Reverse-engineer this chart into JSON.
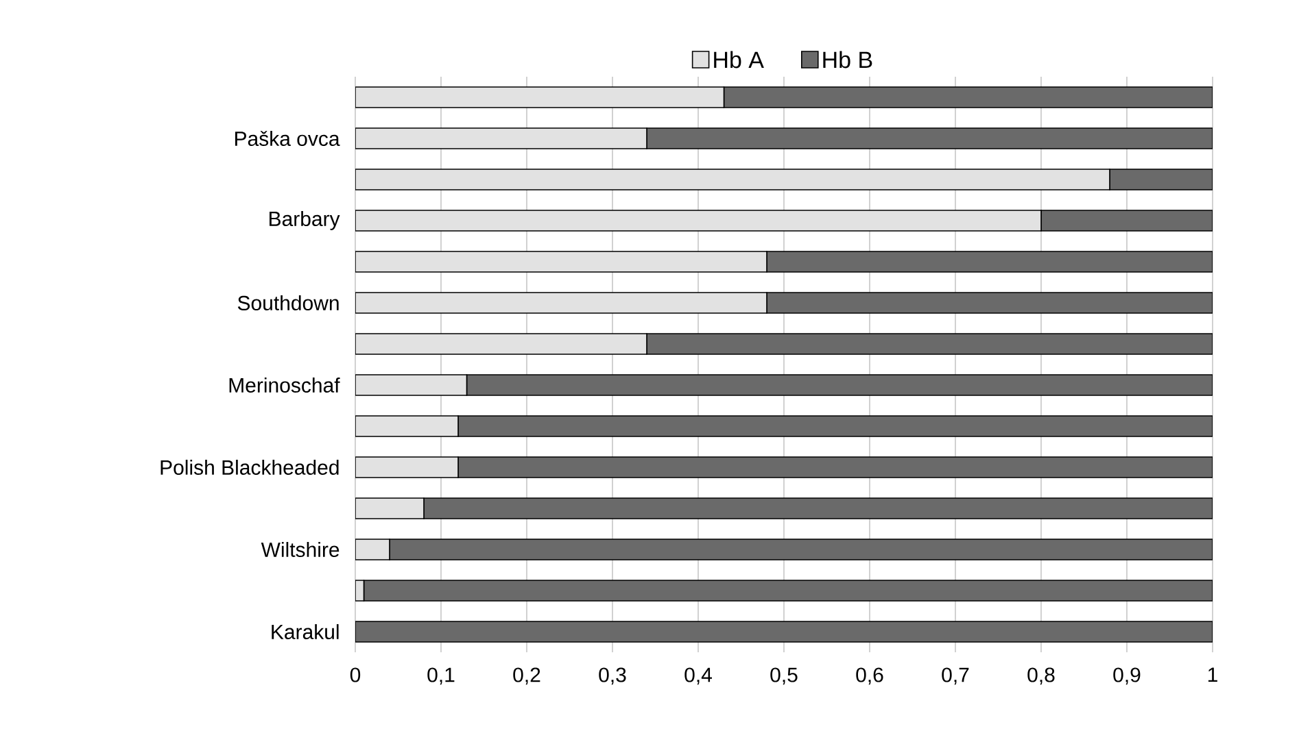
{
  "chart_data": {
    "type": "bar",
    "orientation": "horizontal",
    "stacked": true,
    "categories": [
      null,
      "Paška ovca",
      null,
      "Barbary",
      null,
      "Southdown",
      null,
      "Merinoschaf",
      null,
      "Polish Blackheaded",
      null,
      "Wiltshire",
      null,
      "Karakul"
    ],
    "series": [
      {
        "name": "Hb A",
        "color": "#e2e2e2",
        "values": [
          0.43,
          0.34,
          0.88,
          0.8,
          0.48,
          0.48,
          0.34,
          0.13,
          0.12,
          0.12,
          0.08,
          0.04,
          0.01,
          0
        ]
      },
      {
        "name": "Hb B",
        "color": "#6a6a6a",
        "values": [
          0.57,
          0.66,
          0.12,
          0.2,
          0.52,
          0.52,
          0.66,
          0.87,
          0.88,
          0.88,
          0.92,
          0.96,
          0.99,
          1
        ]
      }
    ],
    "xlim": [
      0,
      1
    ],
    "xticks": [
      0,
      {
        "value": 0.1,
        "label": "0,1"
      },
      {
        "value": 0.2,
        "label": "0,2"
      },
      {
        "value": 0.3,
        "label": "0,3"
      },
      {
        "value": 0.4,
        "label": "0,4"
      },
      {
        "value": 0.5,
        "label": "0,5"
      },
      {
        "value": 0.6,
        "label": "0,6"
      },
      {
        "value": 0.7,
        "label": "0,7"
      },
      {
        "value": 0.8,
        "label": "0,8"
      },
      {
        "value": 0.9,
        "label": "0,9"
      },
      1
    ],
    "grid": "x",
    "legend": "top"
  }
}
